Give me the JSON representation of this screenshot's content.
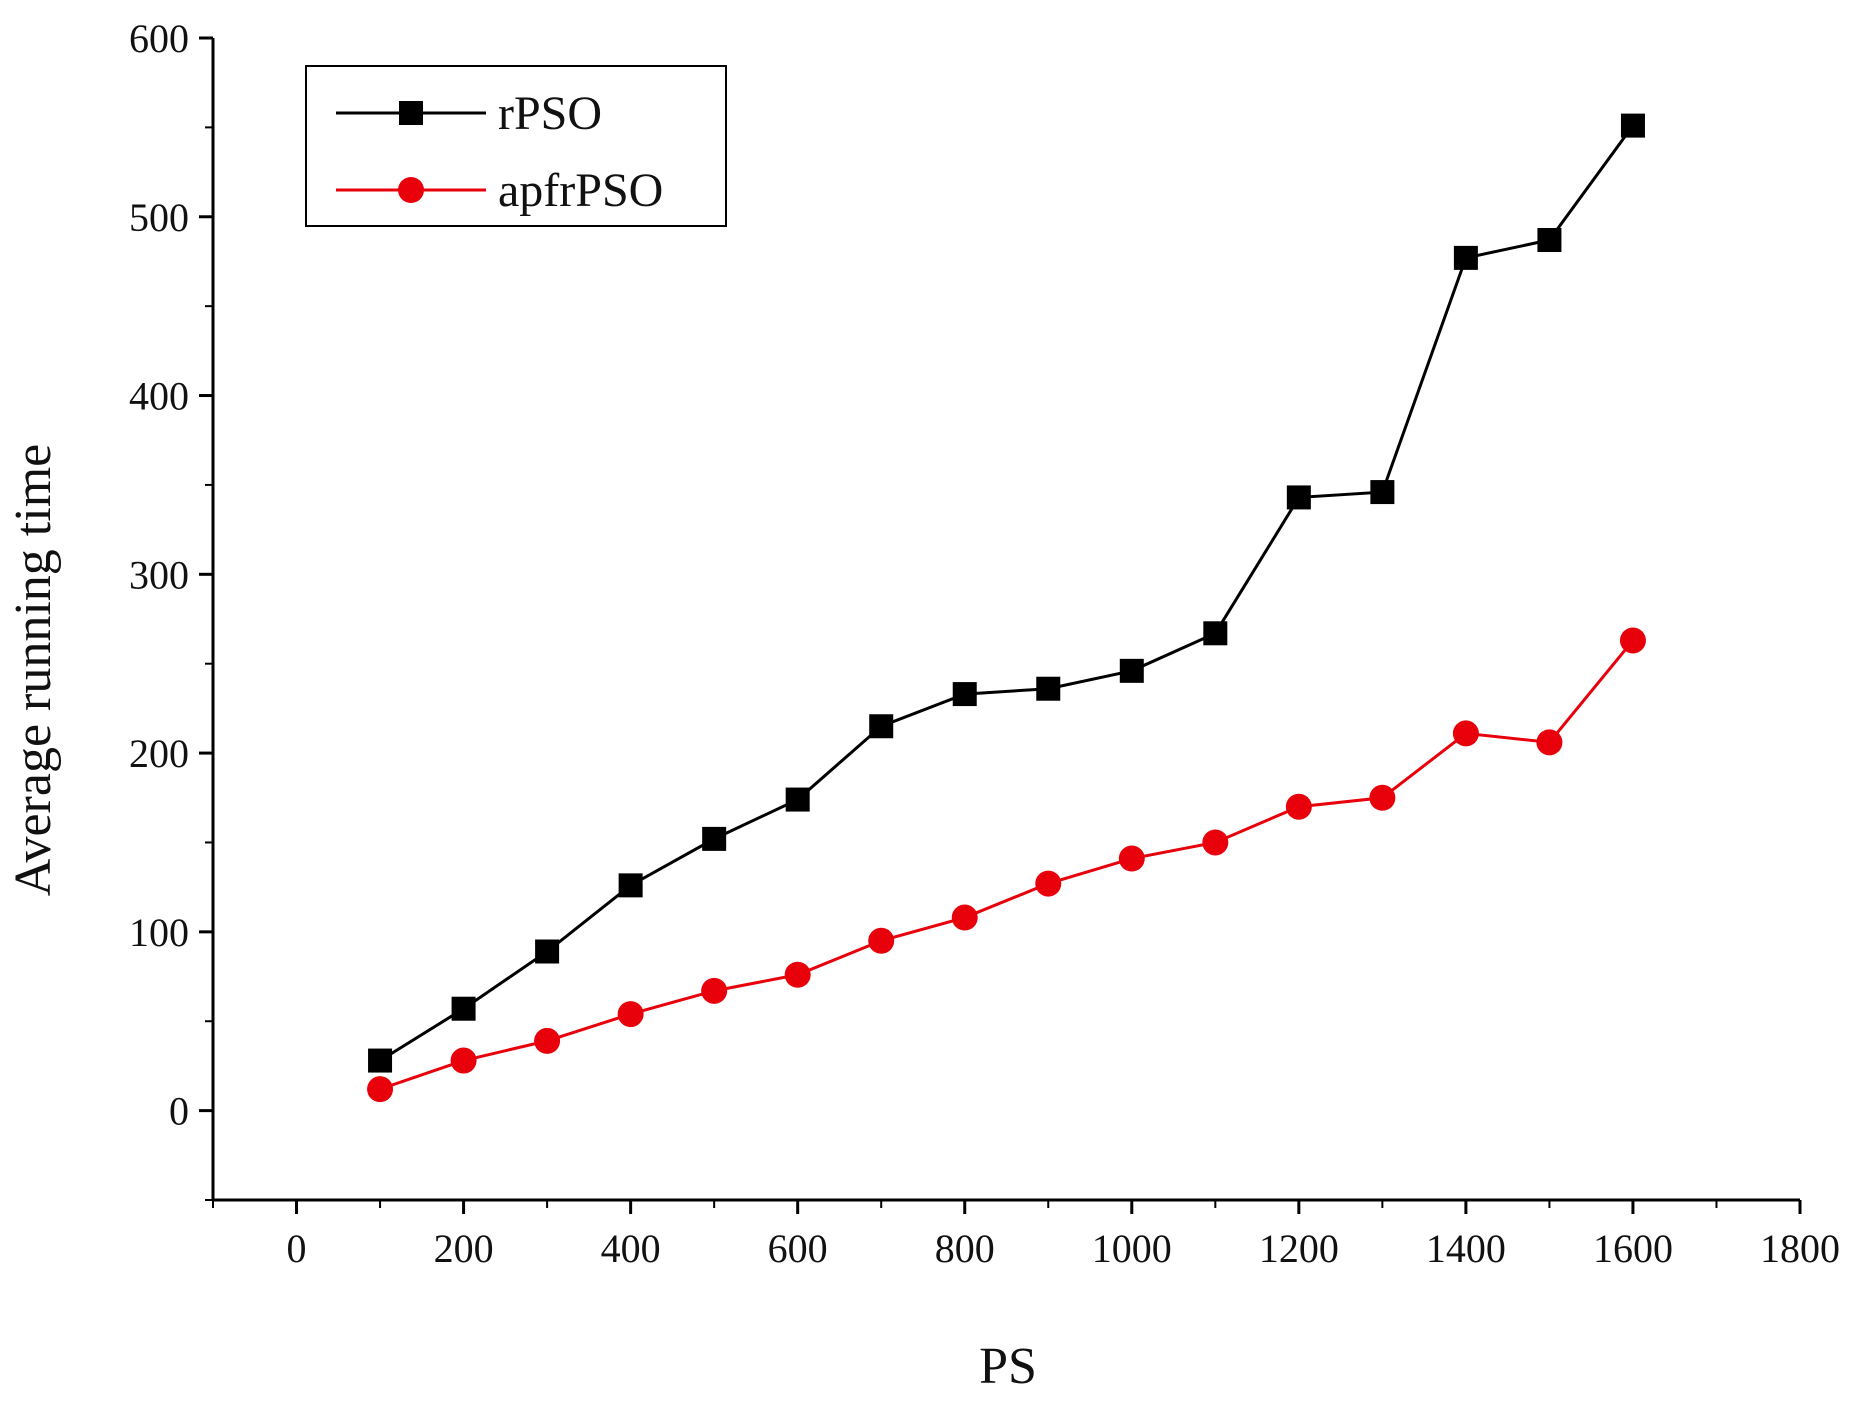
{
  "chart_data": {
    "type": "line",
    "title": "",
    "xlabel": "PS",
    "ylabel": "Average running time",
    "xlim": [
      -100,
      1800
    ],
    "ylim": [
      -50,
      600
    ],
    "x_ticks": [
      0,
      200,
      400,
      600,
      800,
      1000,
      1200,
      1400,
      1600,
      1800
    ],
    "y_ticks": [
      0,
      100,
      200,
      300,
      400,
      500,
      600
    ],
    "grid": false,
    "legend_position": "top-left",
    "x": [
      100,
      200,
      300,
      400,
      500,
      600,
      700,
      800,
      900,
      1000,
      1100,
      1200,
      1300,
      1400,
      1500,
      1600
    ],
    "series": [
      {
        "name": "rPSO",
        "color": "#000000",
        "marker": "square",
        "values": [
          28,
          57,
          89,
          126,
          152,
          174,
          215,
          233,
          236,
          246,
          267,
          343,
          346,
          477,
          487,
          551
        ]
      },
      {
        "name": "apfrPSO",
        "color": "#e8000b",
        "marker": "circle",
        "values": [
          12,
          28,
          39,
          54,
          67,
          76,
          95,
          108,
          127,
          141,
          150,
          170,
          175,
          211,
          206,
          263
        ]
      }
    ]
  }
}
